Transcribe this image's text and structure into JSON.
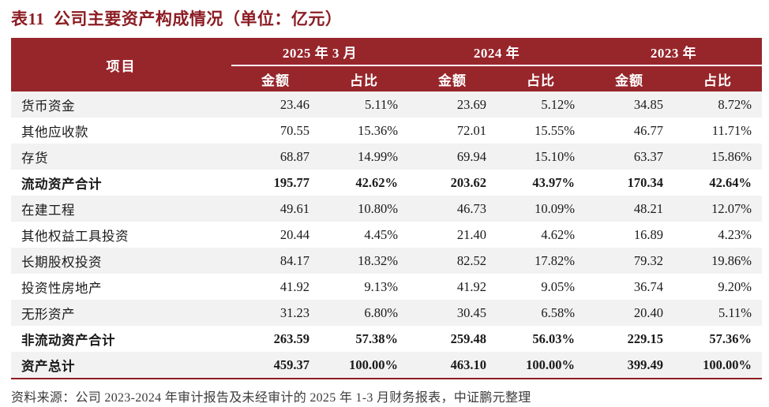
{
  "title": "表11  公司主要资产构成情况（单位：亿元）",
  "colors": {
    "header_bg": "#97262B",
    "header_text": "#FFFFFF",
    "title_text": "#8C1D23",
    "row_alt_bg": "#F2F2F2",
    "bottom_rule": "#8C1D23",
    "body_text": "#1A1A1A",
    "footer_text": "#3B3B3B"
  },
  "table": {
    "item_header": "项目",
    "groups": [
      {
        "label": "2025 年 3 月"
      },
      {
        "label": "2024 年"
      },
      {
        "label": "2023 年"
      }
    ],
    "sub_headers": [
      "金额",
      "占比",
      "金额",
      "占比",
      "金额",
      "占比"
    ],
    "rows": [
      {
        "label": "货币资金",
        "bold": false,
        "values": [
          "23.46",
          "5.11%",
          "23.69",
          "5.12%",
          "34.85",
          "8.72%"
        ]
      },
      {
        "label": "其他应收款",
        "bold": false,
        "values": [
          "70.55",
          "15.36%",
          "72.01",
          "15.55%",
          "46.77",
          "11.71%"
        ]
      },
      {
        "label": "存货",
        "bold": false,
        "values": [
          "68.87",
          "14.99%",
          "69.94",
          "15.10%",
          "63.37",
          "15.86%"
        ]
      },
      {
        "label": "流动资产合计",
        "bold": true,
        "values": [
          "195.77",
          "42.62%",
          "203.62",
          "43.97%",
          "170.34",
          "42.64%"
        ]
      },
      {
        "label": "在建工程",
        "bold": false,
        "values": [
          "49.61",
          "10.80%",
          "46.73",
          "10.09%",
          "48.21",
          "12.07%"
        ]
      },
      {
        "label": "其他权益工具投资",
        "bold": false,
        "values": [
          "20.44",
          "4.45%",
          "21.40",
          "4.62%",
          "16.89",
          "4.23%"
        ]
      },
      {
        "label": "长期股权投资",
        "bold": false,
        "values": [
          "84.17",
          "18.32%",
          "82.52",
          "17.82%",
          "79.32",
          "19.86%"
        ]
      },
      {
        "label": "投资性房地产",
        "bold": false,
        "values": [
          "41.92",
          "9.13%",
          "41.92",
          "9.05%",
          "36.74",
          "9.20%"
        ]
      },
      {
        "label": "无形资产",
        "bold": false,
        "values": [
          "31.23",
          "6.80%",
          "30.45",
          "6.58%",
          "20.40",
          "5.11%"
        ]
      },
      {
        "label": "非流动资产合计",
        "bold": true,
        "values": [
          "263.59",
          "57.38%",
          "259.48",
          "56.03%",
          "229.15",
          "57.36%"
        ]
      },
      {
        "label": "资产总计",
        "bold": true,
        "values": [
          "459.37",
          "100.00%",
          "463.10",
          "100.00%",
          "399.49",
          "100.00%"
        ]
      }
    ]
  },
  "footer": "资料来源：公司 2023-2024 年审计报告及未经审计的 2025 年 1-3 月财务报表，中证鹏元整理"
}
